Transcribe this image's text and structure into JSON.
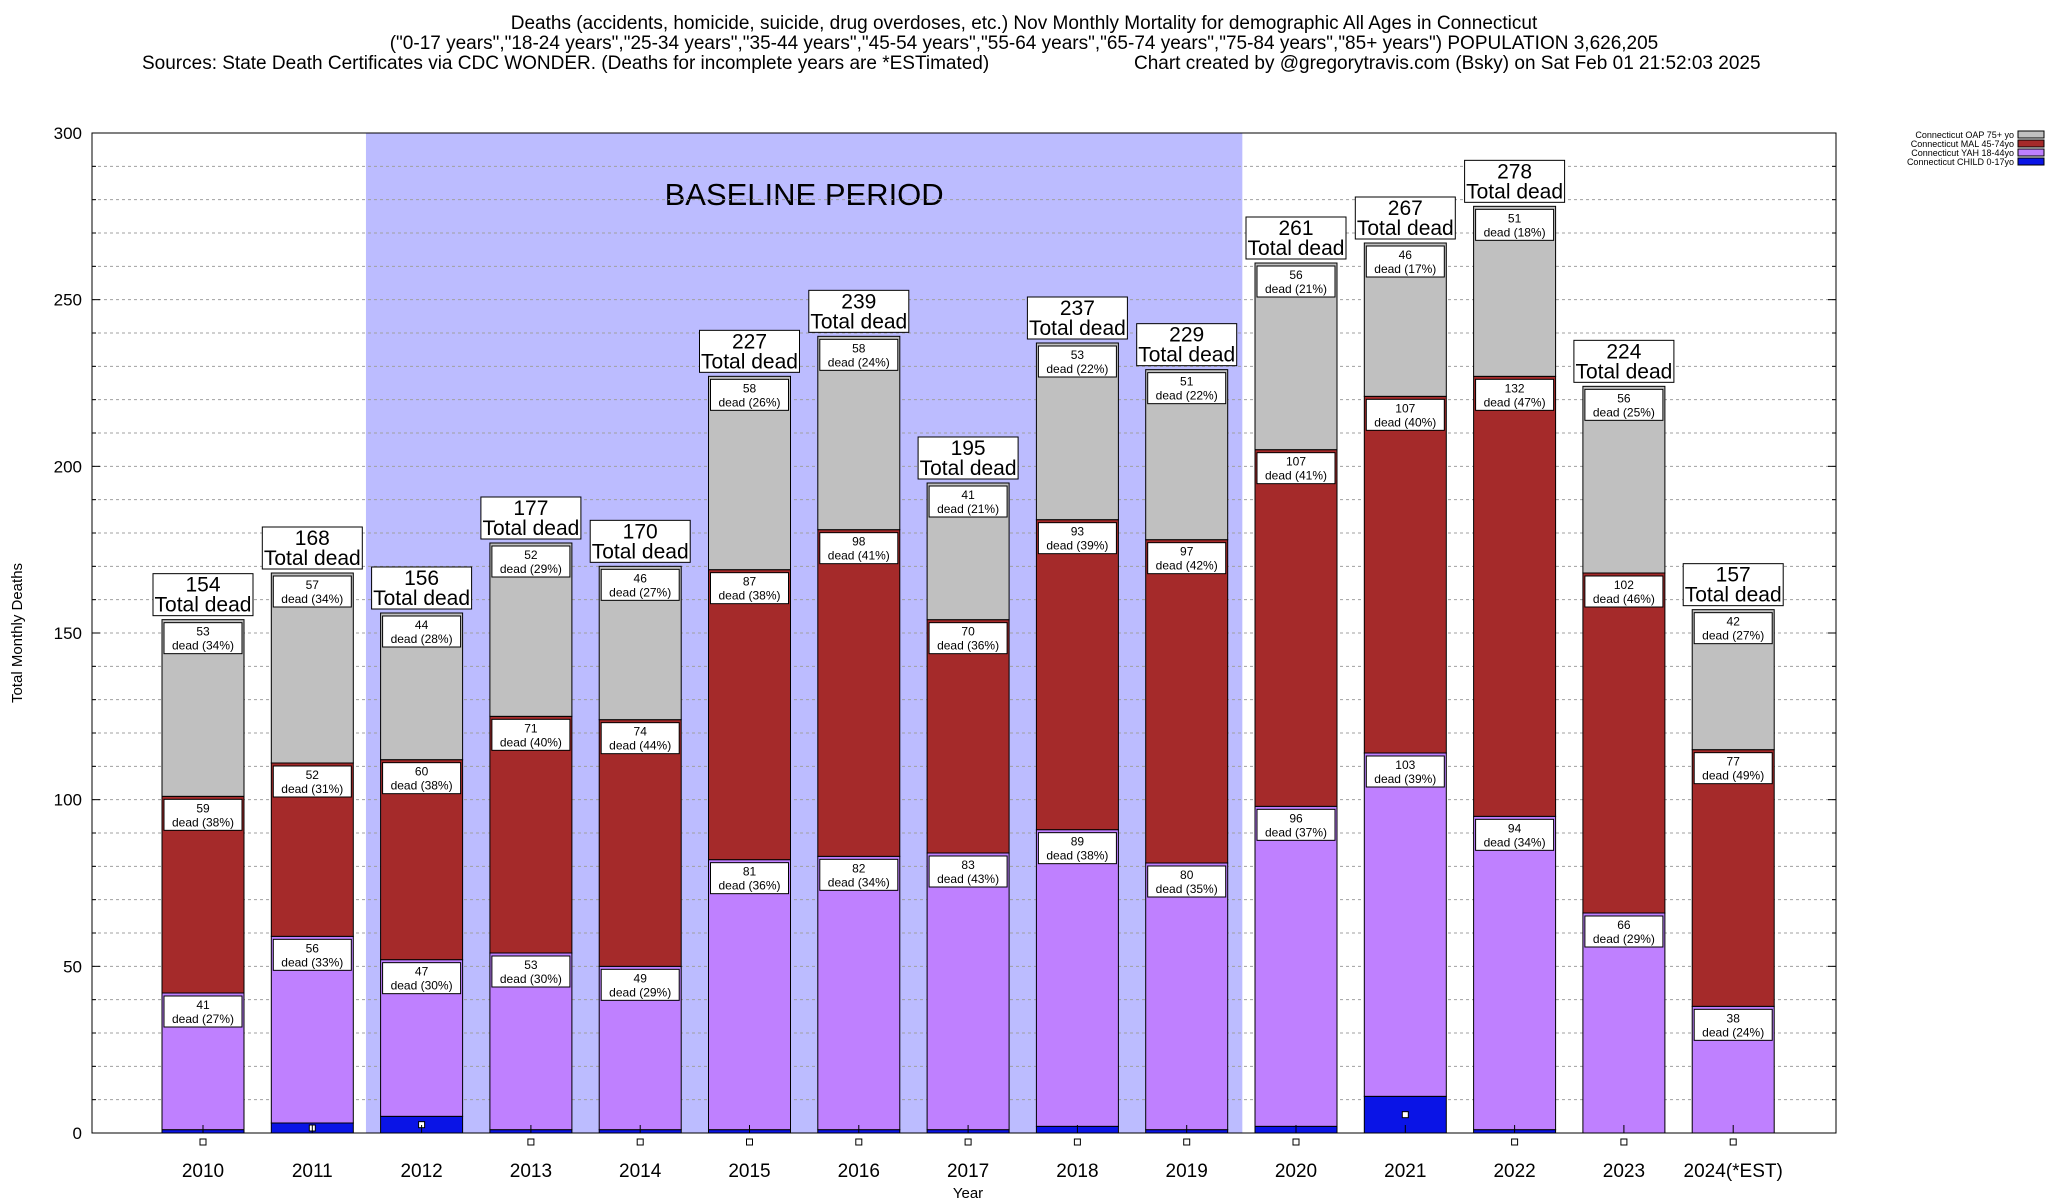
{
  "header": {
    "line1": "Deaths (accidents, homicide, suicide, drug overdoses, etc.) Nov Monthly Mortality for demographic All Ages in Connecticut",
    "line2": "(\"0-17 years\",\"18-24 years\",\"25-34 years\",\"35-44 years\",\"45-54 years\",\"55-64 years\",\"65-74 years\",\"75-84 years\",\"85+ years\") POPULATION 3,626,205",
    "line3_left": "Sources: State Death Certificates via CDC WONDER. (Deaths for incomplete years are *ESTimated)",
    "line3_right": "Chart created by @gregorytravis.com (Bsky) on Sat Feb 01 21:52:03 2025"
  },
  "chart_data": {
    "type": "bar",
    "stacked": true,
    "ylabel": "Total Monthly Deaths",
    "xlabel": "Year",
    "ylim": [
      0,
      300
    ],
    "yticks": [
      0,
      50,
      100,
      150,
      200,
      250,
      300
    ],
    "baseline_label": "BASELINE PERIOD",
    "baseline_range": [
      "2012",
      "2019"
    ],
    "total_label": "Total dead",
    "dead_word": "dead",
    "legend_position": "top-right, outside plot",
    "categories": [
      "2010",
      "2011",
      "2012",
      "2013",
      "2014",
      "2015",
      "2016",
      "2017",
      "2018",
      "2019",
      "2020",
      "2021",
      "2022",
      "2023",
      "2024(*EST)"
    ],
    "totals": [
      154,
      168,
      156,
      177,
      170,
      227,
      239,
      195,
      237,
      229,
      261,
      267,
      278,
      224,
      157
    ],
    "series": [
      {
        "name": "Connecticut CHILD 0-17yo",
        "color": "#0a14e6",
        "values": [
          1,
          3,
          5,
          1,
          1,
          1,
          1,
          1,
          2,
          1,
          2,
          11,
          1,
          0,
          0
        ],
        "pcts": []
      },
      {
        "name": "Connecticut YAH 18-44yo",
        "color": "#bf80ff",
        "values": [
          41,
          56,
          47,
          53,
          49,
          81,
          82,
          83,
          89,
          80,
          96,
          103,
          94,
          66,
          38
        ],
        "pcts": [
          "27%",
          "33%",
          "30%",
          "30%",
          "29%",
          "36%",
          "34%",
          "43%",
          "38%",
          "35%",
          "37%",
          "39%",
          "34%",
          "29%",
          "24%"
        ]
      },
      {
        "name": "Connecticut MAL 45-74yo",
        "color": "#a52a2a",
        "values": [
          59,
          52,
          60,
          71,
          74,
          87,
          98,
          70,
          93,
          97,
          107,
          107,
          132,
          102,
          77
        ],
        "pcts": [
          "38%",
          "31%",
          "38%",
          "40%",
          "44%",
          "38%",
          "41%",
          "36%",
          "39%",
          "42%",
          "41%",
          "40%",
          "47%",
          "46%",
          "49%"
        ]
      },
      {
        "name": "Connecticut OAP 75+ yo",
        "color": "#c0c0c0",
        "values": [
          53,
          57,
          44,
          52,
          46,
          58,
          58,
          41,
          53,
          51,
          56,
          46,
          51,
          56,
          42
        ],
        "pcts": [
          "34%",
          "34%",
          "28%",
          "29%",
          "27%",
          "26%",
          "24%",
          "21%",
          "22%",
          "22%",
          "21%",
          "17%",
          "18%",
          "25%",
          "27%"
        ]
      }
    ]
  }
}
